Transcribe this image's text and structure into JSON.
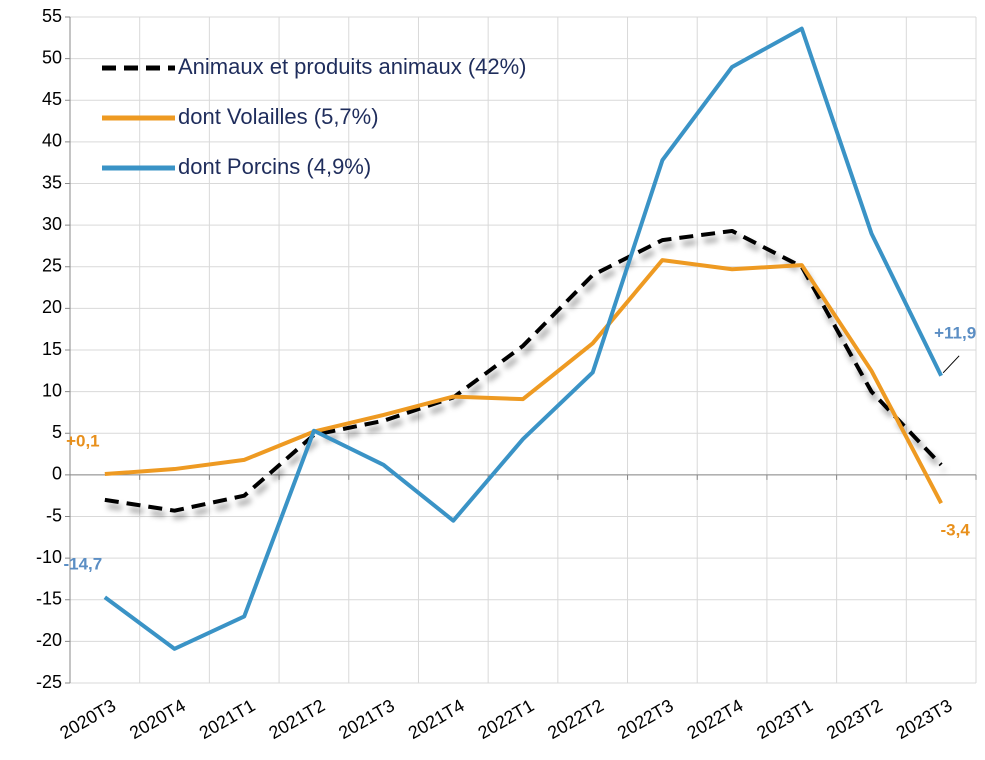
{
  "chart_data": {
    "type": "line",
    "categories": [
      "2020T3",
      "2020T4",
      "2021T1",
      "2021T2",
      "2021T3",
      "2021T4",
      "2022T1",
      "2022T2",
      "2022T3",
      "2022T4",
      "2023T1",
      "2023T2",
      "2023T3"
    ],
    "series": [
      {
        "name": "Animaux et produits animaux (42%)",
        "color": "#000000",
        "dash": true,
        "shadow": true,
        "values": [
          -3,
          -4.3,
          -2.5,
          4.8,
          6.5,
          9.3,
          15.5,
          24,
          28.2,
          29.3,
          25,
          10,
          1.2
        ]
      },
      {
        "name": "dont Volailles (5,7%)",
        "color": "#ee9a22",
        "values": [
          0.1,
          0.7,
          1.8,
          5.2,
          7.2,
          9.4,
          9.1,
          15.8,
          25.8,
          24.7,
          25.2,
          12.5,
          -3.4
        ],
        "value_labels": [
          "+0,1",
          null,
          null,
          null,
          null,
          null,
          null,
          null,
          null,
          null,
          null,
          null,
          "-3,4"
        ]
      },
      {
        "name": "dont Porcins (4,9%)",
        "color": "#3a93c6",
        "values": [
          -14.7,
          -20.9,
          -17,
          5.3,
          1.2,
          -5.5,
          4.3,
          12.3,
          37.8,
          49,
          53.6,
          29,
          11.9
        ],
        "value_labels": [
          "-14,7",
          null,
          null,
          null,
          null,
          null,
          null,
          null,
          null,
          null,
          null,
          null,
          "+11,9"
        ]
      }
    ],
    "ylim": [
      -25,
      55
    ],
    "yticks": [
      -25,
      -20,
      -15,
      -10,
      -5,
      0,
      5,
      10,
      15,
      20,
      25,
      30,
      35,
      40,
      45,
      50,
      55
    ],
    "grid": true,
    "legend": "upper left"
  }
}
